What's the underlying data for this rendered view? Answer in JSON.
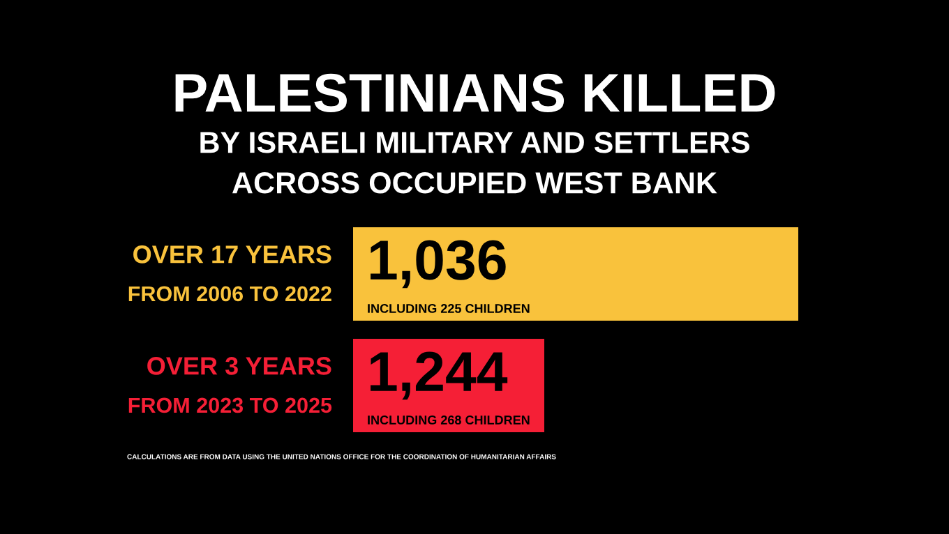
{
  "chart_data": {
    "type": "other",
    "title": "PALESTINIANS KILLED",
    "subtitle": "BY ISRAELI MILITARY AND SETTLERS\nACROSS OCCUPIED WEST BANK",
    "categories": [
      "OVER 17 YEARS\nFROM 2006 TO 2022",
      "OVER 3 YEARS\nFROM 2023 TO 2025"
    ],
    "values": [
      1036,
      1244
    ],
    "value_labels": [
      "1,036",
      "1,244"
    ],
    "colors": [
      "#f9c23c",
      "#f51f36"
    ],
    "annotations": [
      "INCLUDING 225 CHILDREN",
      "INCLUDING 268 CHILDREN",
      "CALCULATIONS ARE FROM DATA USING THE UNITED NATIONS OFFICE FOR THE COORDINATION OF HUMANITARIAN AFFAIRS"
    ]
  }
}
